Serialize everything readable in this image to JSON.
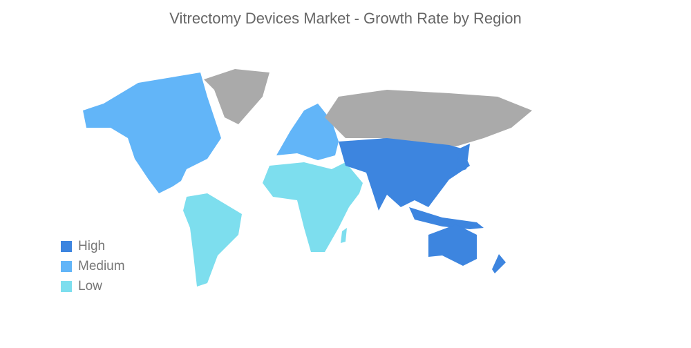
{
  "title": "Vitrectomy Devices Market - Growth Rate by Region",
  "colors": {
    "high": "#3D85DF",
    "medium": "#62B5F8",
    "low": "#7DDEEE",
    "no_data": "#AAAAAA"
  },
  "legend": [
    {
      "label": "High",
      "color": "#3D85DF"
    },
    {
      "label": "Medium",
      "color": "#62B5F8"
    },
    {
      "label": "Low",
      "color": "#7DDEEE"
    }
  ],
  "regions": {
    "north_america": "Medium",
    "europe": "Medium",
    "south_america": "Low",
    "middle_east_africa": "Low",
    "asia_pacific": "High"
  }
}
